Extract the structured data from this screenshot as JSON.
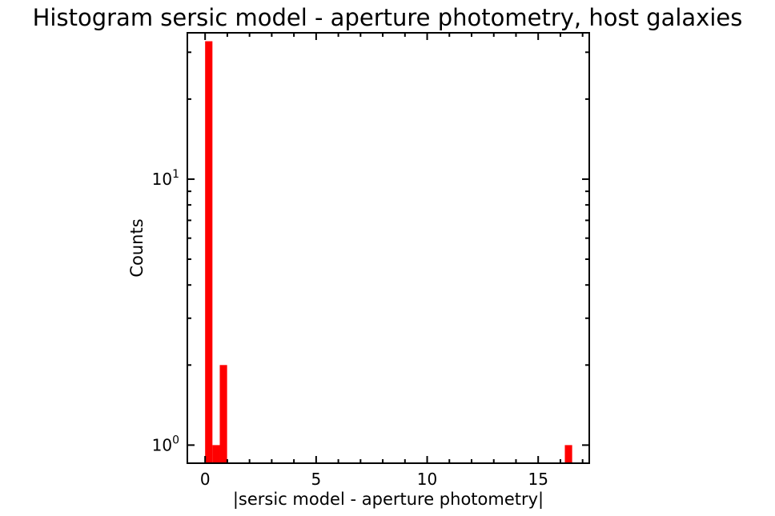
{
  "chart_data": {
    "type": "bar",
    "title": "Histogram sersic model - aperture photometry, host galaxies",
    "xlabel": "|sersic model - aperture photometry|",
    "ylabel": "Counts",
    "yscale": "log",
    "xlim": [
      -0.8,
      17.3
    ],
    "ylim": [
      0.855,
      35.5
    ],
    "bar_color": "#ff0000",
    "bin_width": 0.33,
    "bins": [
      {
        "x0": 0.0,
        "x1": 0.33,
        "count": 33
      },
      {
        "x0": 0.33,
        "x1": 0.66,
        "count": 1
      },
      {
        "x0": 0.66,
        "x1": 0.99,
        "count": 2
      },
      {
        "x0": 16.2,
        "x1": 16.53,
        "count": 1
      }
    ],
    "xticks": [
      {
        "value": 0,
        "label": "0"
      },
      {
        "value": 5,
        "label": "5"
      },
      {
        "value": 10,
        "label": "10"
      },
      {
        "value": 15,
        "label": "15"
      }
    ],
    "yticks_major": [
      {
        "value": 1,
        "base": "10",
        "exp": "0"
      },
      {
        "value": 10,
        "base": "10",
        "exp": "1"
      }
    ],
    "yticks_minor": [
      2,
      3,
      4,
      5,
      6,
      7,
      8,
      9,
      20,
      30
    ],
    "xticks_minor": [
      1,
      2,
      3,
      4,
      6,
      7,
      8,
      9,
      11,
      12,
      13,
      14,
      16,
      17
    ],
    "grid": false,
    "legend": "none"
  }
}
